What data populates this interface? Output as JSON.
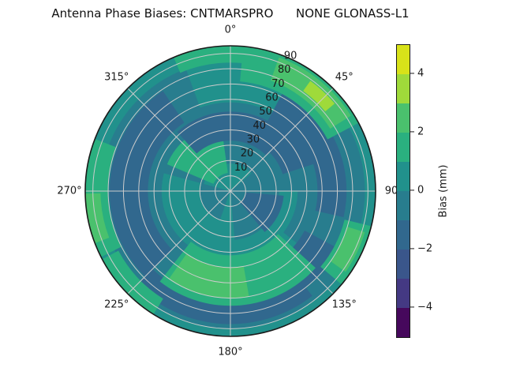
{
  "title": "Antenna Phase Biases: CNTMARSPRO      NONE GLONASS-L1",
  "chart_data": {
    "type": "heatmap",
    "projection": "polar",
    "title": "Antenna Phase Biases: CNTMARSPRO      NONE GLONASS-L1",
    "theta_ticks": [
      {
        "angle_deg": 0,
        "label": "0°"
      },
      {
        "angle_deg": 45,
        "label": "45°"
      },
      {
        "angle_deg": 90,
        "label": "90"
      },
      {
        "angle_deg": 135,
        "label": "135°"
      },
      {
        "angle_deg": 180,
        "label": "180°"
      },
      {
        "angle_deg": 225,
        "label": "225°"
      },
      {
        "angle_deg": 270,
        "label": "270°"
      },
      {
        "angle_deg": 315,
        "label": "315°"
      }
    ],
    "r_ticks": [
      "10",
      "20",
      "30",
      "40",
      "50",
      "60",
      "70",
      "80",
      "90"
    ],
    "r_max": 95,
    "r_label_angle_deg": 24,
    "grid": true,
    "grid_color": "#cccccc",
    "spine_color": "#1a1a1a",
    "colorbar": {
      "label": "Bias (mm)",
      "position": "right",
      "vmin": -5,
      "vmax": 5,
      "ticks": [
        {
          "value": 4,
          "label": "4"
        },
        {
          "value": 2,
          "label": "2"
        },
        {
          "value": 0,
          "label": "0"
        },
        {
          "value": -2,
          "label": "−2"
        },
        {
          "value": -4,
          "label": "−4"
        }
      ],
      "levels": [
        {
          "from": -5,
          "to": -4,
          "color": "#46085c"
        },
        {
          "from": -4,
          "to": -3,
          "color": "#443983"
        },
        {
          "from": -3,
          "to": -2,
          "color": "#3a568b"
        },
        {
          "from": -2,
          "to": -1,
          "color": "#31688e"
        },
        {
          "from": -1,
          "to": 0,
          "color": "#287d8e"
        },
        {
          "from": 0,
          "to": 1,
          "color": "#21918c"
        },
        {
          "from": 1,
          "to": 2,
          "color": "#2ab07f"
        },
        {
          "from": 2,
          "to": 3,
          "color": "#4ac16d"
        },
        {
          "from": 3,
          "to": 4,
          "color": "#9fda3a"
        },
        {
          "from": 4,
          "to": 5,
          "color": "#d8e219"
        }
      ]
    },
    "base_level": {
      "value_range": "0..1",
      "color": "#21918c"
    },
    "regions": [
      {
        "name": "upper-ring-band",
        "value_range": "-1..0",
        "color": "#287d8e",
        "r0": 18,
        "r1": 58,
        "a0": 285,
        "a1": 450
      },
      {
        "name": "right-band",
        "value_range": "-1..0",
        "color": "#287d8e",
        "r0": 44,
        "r1": 88,
        "a0": 55,
        "a1": 128
      },
      {
        "name": "left-band",
        "value_range": "-1..0",
        "color": "#287d8e",
        "r0": 45,
        "r1": 85,
        "a0": 200,
        "a1": 340
      },
      {
        "name": "bottom-band",
        "value_range": "-1..0",
        "color": "#287d8e",
        "r0": 68,
        "r1": 90,
        "a0": 130,
        "a1": 240
      },
      {
        "name": "center-right-patch",
        "value_range": "-1..0",
        "color": "#287d8e",
        "r0": 0,
        "r1": 32,
        "a0": 50,
        "a1": 175
      },
      {
        "name": "center-lowleft-patch",
        "value_range": "-1..0",
        "color": "#287d8e",
        "r0": 0,
        "r1": 20,
        "a0": 200,
        "a1": 285
      },
      {
        "name": "inner-upperleft-patch",
        "value_range": "1..2",
        "color": "#2ab07f",
        "r0": 12,
        "r1": 45,
        "a0": 293,
        "a1": 352
      },
      {
        "name": "top-dark-ring",
        "value_range": "-2..-1",
        "color": "#31688e",
        "r0": 33,
        "r1": 52,
        "a0": 318,
        "a1": 405
      },
      {
        "name": "topright-dark-wedge",
        "value_range": "-2..-1",
        "color": "#31688e",
        "r0": 36,
        "r1": 72,
        "a0": 28,
        "a1": 72
      },
      {
        "name": "right-dark-arc",
        "value_range": "-2..-1",
        "color": "#31688e",
        "r0": 57,
        "r1": 76,
        "a0": 62,
        "a1": 103
      },
      {
        "name": "bottomright-dark-arc",
        "value_range": "-2..-1",
        "color": "#31688e",
        "r0": 55,
        "r1": 80,
        "a0": 118,
        "a1": 148
      },
      {
        "name": "bottom-dark-arc",
        "value_range": "-2..-1",
        "color": "#31688e",
        "r0": 72,
        "r1": 87,
        "a0": 142,
        "a1": 225
      },
      {
        "name": "left-dark-arc",
        "value_range": "-2..-1",
        "color": "#31688e",
        "r0": 54,
        "r1": 79,
        "a0": 225,
        "a1": 326
      },
      {
        "name": "center-dark-blob",
        "value_range": "-2..-1",
        "color": "#31688e",
        "r0": 10,
        "r1": 35,
        "a0": 95,
        "a1": 140
      },
      {
        "name": "bottom-green-swath",
        "value_range": "1..2",
        "color": "#2ab07f",
        "r0": 42,
        "r1": 75,
        "a0": 132,
        "a1": 218
      },
      {
        "name": "bottom-green-core",
        "value_range": "2..3",
        "color": "#4ac16d",
        "r0": 50,
        "r1": 70,
        "a0": 170,
        "a1": 215
      },
      {
        "name": "topright-green-band",
        "value_range": "1..2",
        "color": "#2ab07f",
        "r0": 72,
        "r1": 95,
        "a0": 5,
        "a1": 62
      },
      {
        "name": "topright-green-arc",
        "value_range": "2..3",
        "color": "#4ac16d",
        "r0": 77,
        "r1": 93,
        "a0": 20,
        "a1": 58
      },
      {
        "name": "topright-bright-sliver",
        "value_range": "3..4",
        "color": "#9fda3a",
        "r0": 81,
        "r1": 89,
        "a0": 36,
        "a1": 50
      },
      {
        "name": "top-edge-green-arc",
        "value_range": "1..2",
        "color": "#2ab07f",
        "r0": 84,
        "r1": 95,
        "a0": 337,
        "a1": 372
      },
      {
        "name": "left-edge-green-patch",
        "value_range": "1..2",
        "color": "#2ab07f",
        "r0": 80,
        "r1": 95,
        "a0": 243,
        "a1": 291
      },
      {
        "name": "left-edge-bright-sliver",
        "value_range": "2..3",
        "color": "#4ac16d",
        "r0": 85,
        "r1": 95,
        "a0": 249,
        "a1": 269
      },
      {
        "name": "bottomright-green-patch",
        "value_range": "1..2",
        "color": "#2ab07f",
        "r0": 77,
        "r1": 95,
        "a0": 104,
        "a1": 130
      },
      {
        "name": "bottomright-green-sliver",
        "value_range": "2..3",
        "color": "#4ac16d",
        "r0": 80,
        "r1": 92,
        "a0": 107,
        "a1": 125
      },
      {
        "name": "bottomleft-edge-green",
        "value_range": "1..2",
        "color": "#2ab07f",
        "r0": 83,
        "r1": 95,
        "a0": 212,
        "a1": 242
      }
    ]
  }
}
